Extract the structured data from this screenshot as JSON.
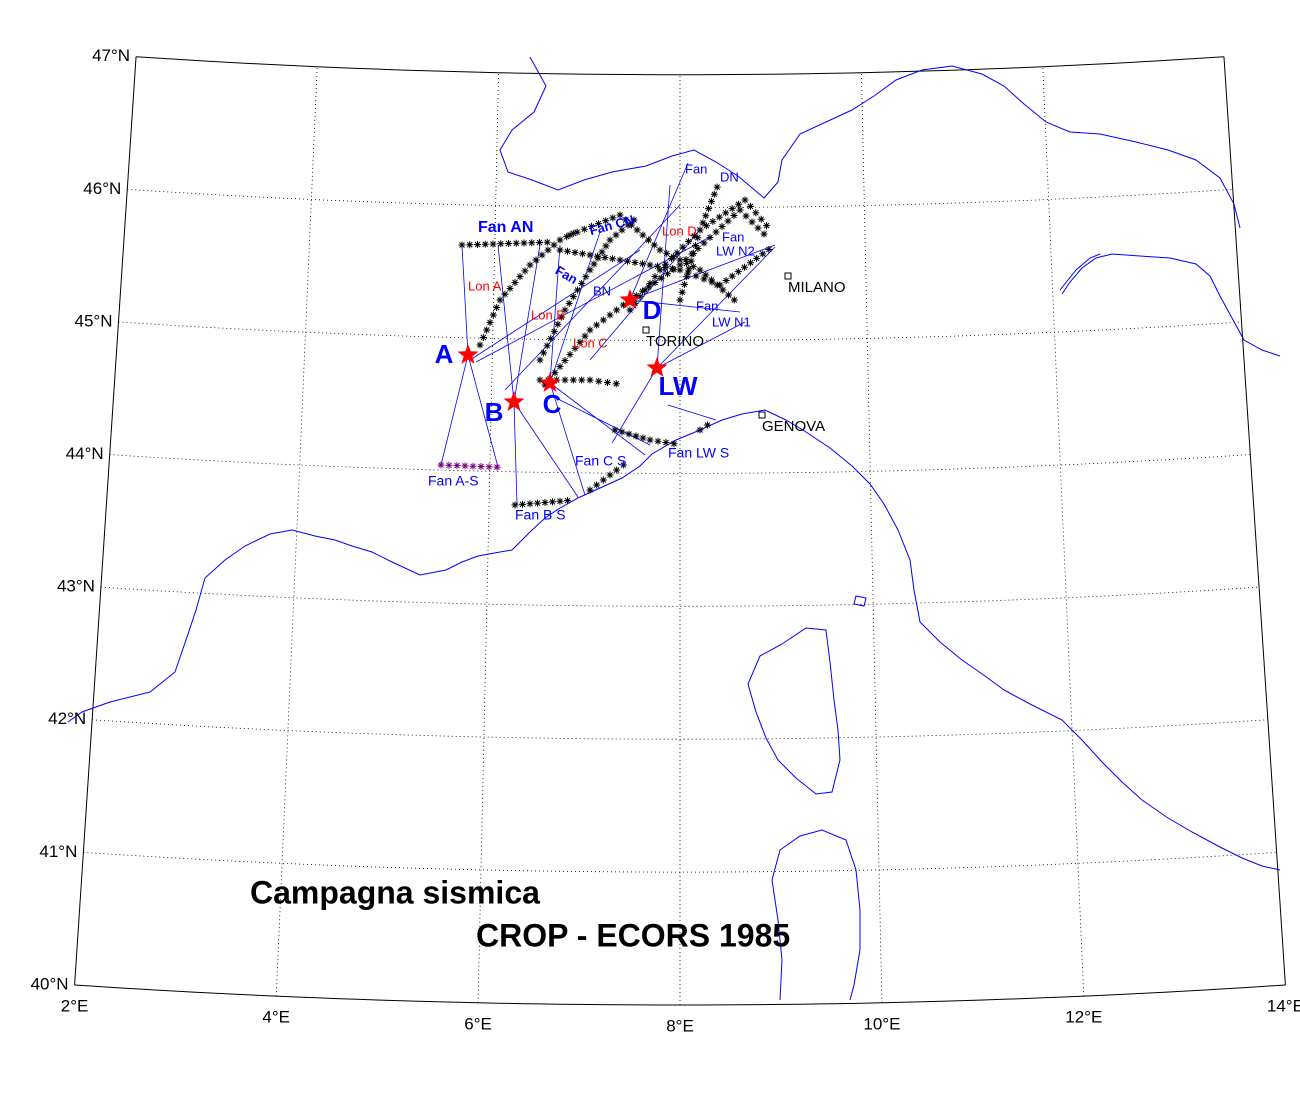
{
  "title": [
    "Campagna sismica",
    "CROP -  ECORS 1985"
  ],
  "grid": {
    "lat_ticks": [
      {
        "value": 40,
        "label": "40°N"
      },
      {
        "value": 41,
        "label": "41°N"
      },
      {
        "value": 42,
        "label": "42°N"
      },
      {
        "value": 43,
        "label": "43°N"
      },
      {
        "value": 44,
        "label": "44°N"
      },
      {
        "value": 45,
        "label": "45°N"
      },
      {
        "value": 46,
        "label": "46°N"
      },
      {
        "value": 47,
        "label": "47°N"
      }
    ],
    "lon_ticks": [
      {
        "value": 2,
        "label": "2°E"
      },
      {
        "value": 4,
        "label": "4°E"
      },
      {
        "value": 6,
        "label": "6°E"
      },
      {
        "value": 8,
        "label": "8°E"
      },
      {
        "value": 10,
        "label": "10°E"
      },
      {
        "value": 12,
        "label": "12°E"
      },
      {
        "value": 14,
        "label": "14°E"
      }
    ]
  },
  "stations": [
    "A",
    "B",
    "C",
    "D",
    "LW"
  ],
  "profiles": [
    "Fan AN",
    "Fan CN",
    "Lon D",
    "Fan",
    "DN",
    "Fan",
    "LW N2",
    "Lon A",
    "Fan",
    "BN",
    "Lon B",
    "Lon C",
    "Fan",
    "LW N1",
    "Fan C S",
    "Fan LW S",
    "Fan A-S",
    "Fan B S"
  ],
  "cities": [
    "MILANO",
    "TORINO",
    "GENOVA"
  ]
}
